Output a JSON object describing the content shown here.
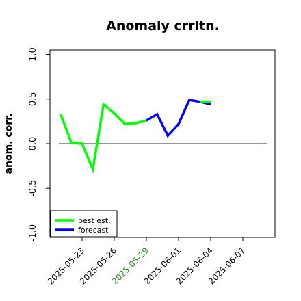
{
  "chart_data": {
    "type": "line",
    "title": "Anomaly crrltn.",
    "xlabel": "",
    "ylabel": "anom. corr.",
    "ylim": [
      -1.05,
      1.05
    ],
    "xlim": [
      "2025-05-20",
      "2025-06-10"
    ],
    "yticks": [
      -1.0,
      -0.5,
      0.0,
      0.5,
      1.0
    ],
    "ytick_labels": [
      "-1.0",
      "-0.5",
      "0.0",
      "0.5",
      "1.0"
    ],
    "xticks": [
      "2025-05-23",
      "2025-05-26",
      "2025-05-29",
      "2025-06-01",
      "2025-06-04",
      "2025-06-07"
    ],
    "xtick_labels": [
      "2025-05-23",
      "2025-05-26",
      "2025-05-29",
      "2025-06-01",
      "2025-06-04",
      "2025-06-07"
    ],
    "highlight_tick": "2025-05-29",
    "highlight_color": "#228b22",
    "reference_line": 0.0,
    "grid": false,
    "legend_position": "lower-left",
    "series": [
      {
        "name": "best est.",
        "color": "#00ff00",
        "x": [
          "2025-05-21",
          "2025-05-22",
          "2025-05-23",
          "2025-05-24",
          "2025-05-25",
          "2025-05-26",
          "2025-05-27",
          "2025-05-28",
          "2025-05-29"
        ],
        "y": [
          0.33,
          0.01,
          0.0,
          -0.29,
          0.44,
          0.34,
          0.22,
          0.23,
          0.26
        ]
      },
      {
        "name": "forecast",
        "color": "#0000ff",
        "x": [
          "2025-05-29",
          "2025-05-30",
          "2025-05-31",
          "2025-06-01",
          "2025-06-02",
          "2025-06-03",
          "2025-06-04"
        ],
        "y": [
          0.26,
          0.33,
          0.09,
          0.22,
          0.49,
          0.47,
          0.44
        ]
      },
      {
        "name": "",
        "color": "#00ff00",
        "x": [
          "2025-06-03",
          "2025-06-04"
        ],
        "y": [
          0.47,
          0.47
        ]
      }
    ]
  }
}
